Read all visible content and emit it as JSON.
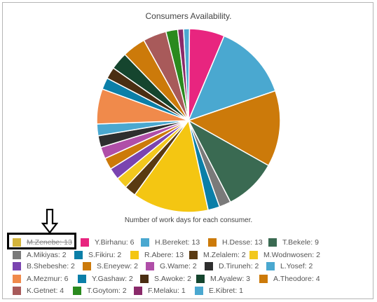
{
  "chart_data": {
    "type": "pie",
    "title": "Consumers Availability.",
    "subtitle": "Number of work days for each consumer.",
    "slices": [
      {
        "label": "M.Zenebe",
        "value": 13,
        "color": "#d4b43a",
        "hidden": true
      },
      {
        "label": "Y.Birhanu",
        "value": 6,
        "color": "#e8257f",
        "hidden": false
      },
      {
        "label": "H.Bereket",
        "value": 13,
        "color": "#4aa8d0",
        "hidden": false
      },
      {
        "label": "H.Desse",
        "value": 13,
        "color": "#cc7a0a",
        "hidden": false
      },
      {
        "label": "T.Bekele",
        "value": 9,
        "color": "#3a6a52",
        "hidden": false
      },
      {
        "label": "A.Mikiyas",
        "value": 2,
        "color": "#7a7a7a",
        "hidden": false
      },
      {
        "label": "S.Fikiru",
        "value": 2,
        "color": "#0b7fa8",
        "hidden": false
      },
      {
        "label": "R.Abere",
        "value": 13,
        "color": "#f4c612",
        "hidden": false
      },
      {
        "label": "M.Zelalem",
        "value": 2,
        "color": "#5a3a12",
        "hidden": false
      },
      {
        "label": "M.Wodnwosen",
        "value": 2,
        "color": "#f2c81e",
        "hidden": false
      },
      {
        "label": "B.Shebeshe",
        "value": 2,
        "color": "#7a44b0",
        "hidden": false
      },
      {
        "label": "S.Eneyew",
        "value": 2,
        "color": "#cc7a0a",
        "hidden": false
      },
      {
        "label": "G.Wame",
        "value": 2,
        "color": "#b04ea8",
        "hidden": false
      },
      {
        "label": "D.Tiruneh",
        "value": 2,
        "color": "#2e2e2e",
        "hidden": false
      },
      {
        "label": "L.Yosef",
        "value": 2,
        "color": "#4aa8d0",
        "hidden": false
      },
      {
        "label": "A.Mezmur",
        "value": 6,
        "color": "#f08a4b",
        "hidden": false
      },
      {
        "label": "Y.Gashaw",
        "value": 2,
        "color": "#0b7fa8",
        "hidden": false
      },
      {
        "label": "S.Awoke",
        "value": 2,
        "color": "#4a2e12",
        "hidden": false
      },
      {
        "label": "M.Ayalew",
        "value": 3,
        "color": "#15452e",
        "hidden": false
      },
      {
        "label": "A.Theodore",
        "value": 4,
        "color": "#cc7a0a",
        "hidden": false
      },
      {
        "label": "K.Getnet",
        "value": 4,
        "color": "#a85a5a",
        "hidden": false
      },
      {
        "label": "T.Goytom",
        "value": 2,
        "color": "#2a8a1e",
        "hidden": false
      },
      {
        "label": "F.Melaku",
        "value": 1,
        "color": "#8a2a6a",
        "hidden": false
      },
      {
        "label": "E.Kibret",
        "value": 1,
        "color": "#4aa8d0",
        "hidden": false
      }
    ],
    "legend_position": "bottom"
  }
}
